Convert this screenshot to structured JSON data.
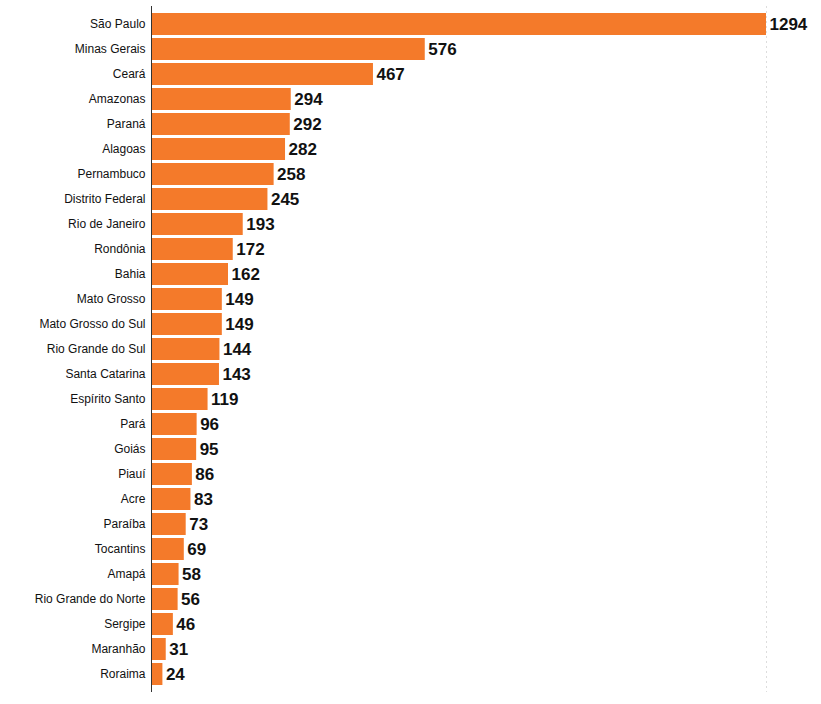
{
  "chart_data": {
    "type": "bar",
    "orientation": "horizontal",
    "categories": [
      "São Paulo",
      "Minas Gerais",
      "Ceará",
      "Amazonas",
      "Paraná",
      "Alagoas",
      "Pernambuco",
      "Distrito Federal",
      "Rio de Janeiro",
      "Rondônia",
      "Bahia",
      "Mato Grosso",
      "Mato Grosso do Sul",
      "Rio Grande do Sul",
      "Santa Catarina",
      "Espírito Santo",
      "Pará",
      "Goiás",
      "Piauí",
      "Acre",
      "Paraíba",
      "Tocantins",
      "Amapá",
      "Rio Grande do Norte",
      "Sergipe",
      "Maranhão",
      "Roraima"
    ],
    "values": [
      1294,
      576,
      467,
      294,
      292,
      282,
      258,
      245,
      193,
      172,
      162,
      149,
      149,
      144,
      143,
      119,
      96,
      95,
      86,
      83,
      73,
      69,
      58,
      56,
      46,
      31,
      24
    ],
    "color": "#f47a2a",
    "xlim": [
      0,
      1294
    ],
    "xticks": [],
    "data_labels": true,
    "tick_labels": "y",
    "grid": false
  }
}
